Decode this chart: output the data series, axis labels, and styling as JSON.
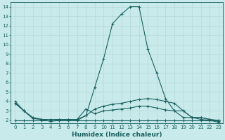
{
  "xlabel": "Humidex (Indice chaleur)",
  "bg_color": "#c8eaea",
  "grid_color": "#b8d8d8",
  "line_color": "#1a6060",
  "xlim": [
    -0.5,
    23.5
  ],
  "ylim": [
    1.7,
    14.5
  ],
  "xticks": [
    0,
    1,
    2,
    3,
    4,
    5,
    6,
    7,
    8,
    9,
    10,
    11,
    12,
    13,
    14,
    15,
    16,
    17,
    18,
    19,
    20,
    21,
    22,
    23
  ],
  "yticks": [
    2,
    3,
    4,
    5,
    6,
    7,
    8,
    9,
    10,
    11,
    12,
    13,
    14
  ],
  "line1_x": [
    0,
    1,
    2,
    3,
    4,
    5,
    6,
    7,
    8,
    9,
    10,
    11,
    12,
    13,
    14,
    15,
    16,
    17,
    18,
    19,
    20,
    21,
    22,
    23
  ],
  "line1_y": [
    4.0,
    3.0,
    2.2,
    2.1,
    1.9,
    2.0,
    2.0,
    2.0,
    2.5,
    5.5,
    8.5,
    12.2,
    13.2,
    14.0,
    14.0,
    9.5,
    7.0,
    4.3,
    3.0,
    2.3,
    2.3,
    2.1,
    2.0,
    1.8
  ],
  "line2_x": [
    0,
    1,
    2,
    3,
    4,
    5,
    6,
    7,
    8,
    9,
    10,
    11,
    12,
    13,
    14,
    15,
    16,
    17,
    18,
    19,
    20,
    21,
    22,
    23
  ],
  "line2_y": [
    3.8,
    3.0,
    2.2,
    2.1,
    2.1,
    2.1,
    2.1,
    2.1,
    2.5,
    3.2,
    3.5,
    3.7,
    3.8,
    4.0,
    4.2,
    4.3,
    4.2,
    4.0,
    3.8,
    3.0,
    2.3,
    2.3,
    2.1,
    2.0
  ],
  "line3_x": [
    0,
    1,
    2,
    3,
    4,
    5,
    6,
    7,
    8,
    9,
    10,
    11,
    12,
    13,
    14,
    15,
    16,
    17,
    18,
    19,
    20,
    21,
    22,
    23
  ],
  "line3_y": [
    2.0,
    2.0,
    2.0,
    2.0,
    2.0,
    2.0,
    2.0,
    2.0,
    2.0,
    2.0,
    2.0,
    2.0,
    2.0,
    2.0,
    2.0,
    2.0,
    2.0,
    2.0,
    2.0,
    2.0,
    2.0,
    2.0,
    2.0,
    2.0
  ],
  "line4_x": [
    0,
    1,
    2,
    3,
    4,
    5,
    6,
    7,
    8,
    9,
    10,
    11,
    12,
    13,
    14,
    15,
    16,
    17,
    18,
    19,
    20,
    21,
    22,
    23
  ],
  "line4_y": [
    3.8,
    3.0,
    2.3,
    2.1,
    1.9,
    2.1,
    2.1,
    2.1,
    3.2,
    2.7,
    3.0,
    3.1,
    3.2,
    3.3,
    3.5,
    3.5,
    3.3,
    3.1,
    3.0,
    3.0,
    2.3,
    2.3,
    2.1,
    1.9
  ]
}
